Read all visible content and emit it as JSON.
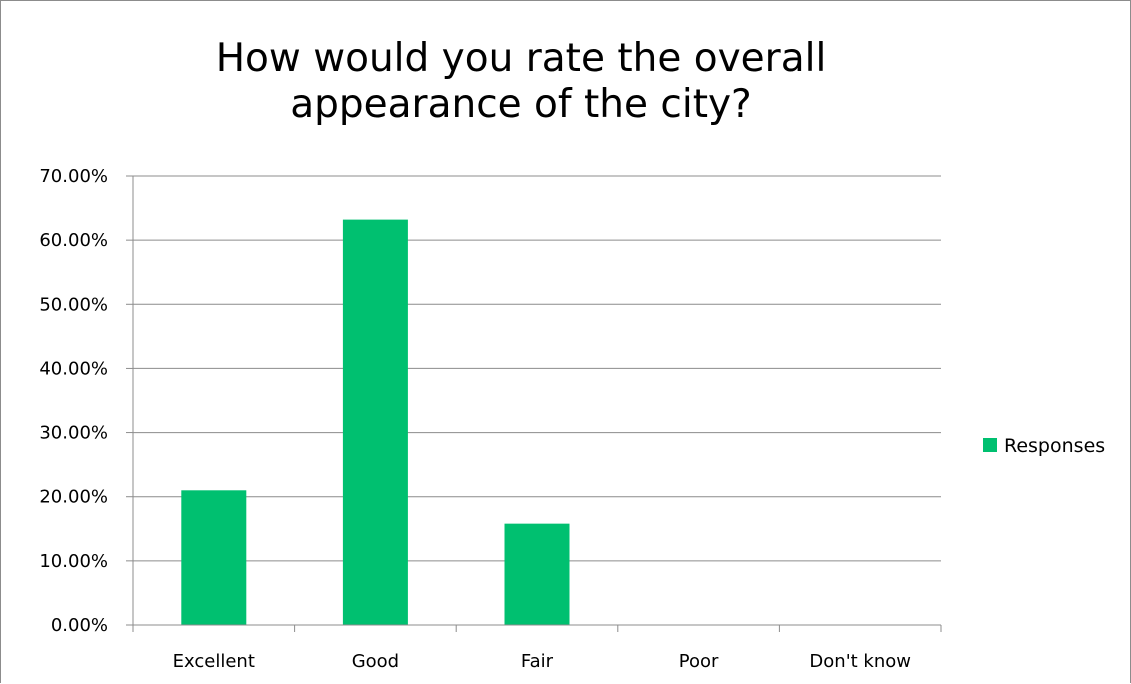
{
  "chart_data": {
    "type": "bar",
    "title_lines": [
      "How would you rate the overall",
      "appearance of the city?"
    ],
    "categories": [
      "Excellent",
      "Good",
      "Fair",
      "Poor",
      "Don't know"
    ],
    "series": [
      {
        "name": "Responses",
        "values": [
          0.21,
          0.632,
          0.158,
          0.0,
          0.0
        ]
      }
    ],
    "ylim": [
      0,
      0.7
    ],
    "y_ticks": [
      0,
      0.1,
      0.2,
      0.3,
      0.4,
      0.5,
      0.6,
      0.7
    ],
    "y_tick_labels": [
      "0.00%",
      "10.00%",
      "20.00%",
      "30.00%",
      "40.00%",
      "50.00%",
      "60.00%",
      "70.00%"
    ],
    "grid": true,
    "legend_position": "right",
    "bar_color": "#00c070"
  }
}
